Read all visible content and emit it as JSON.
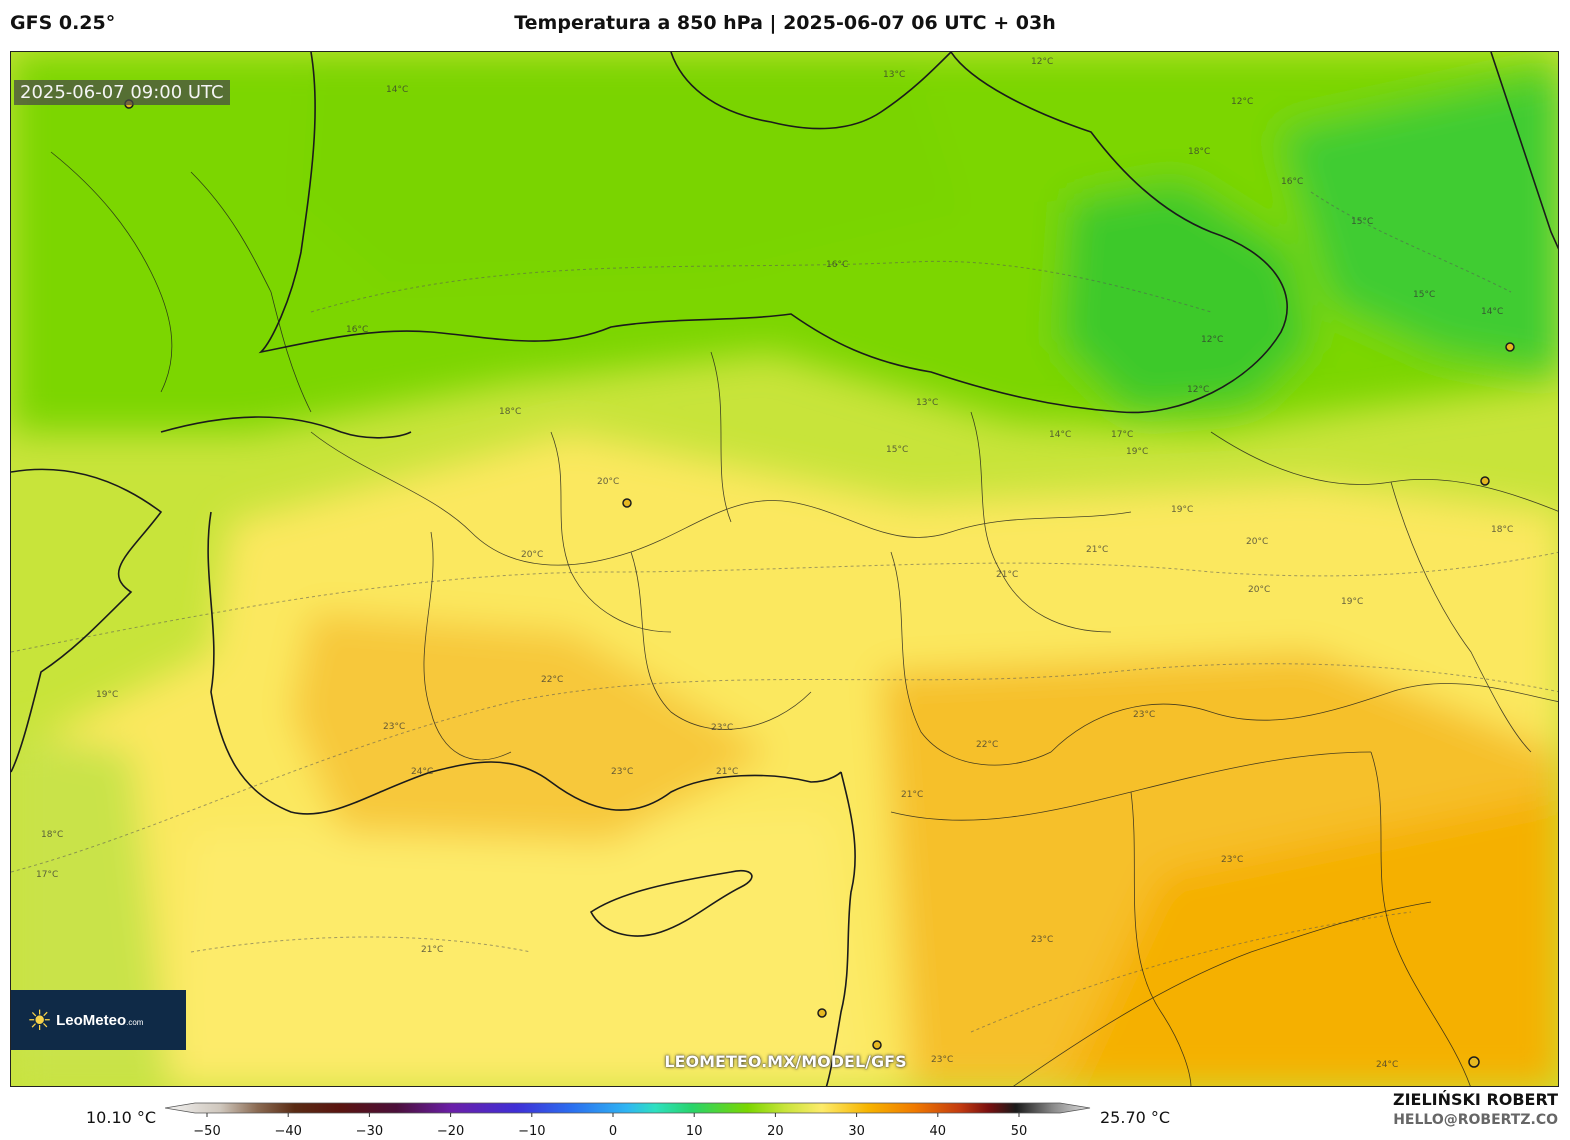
{
  "header": {
    "model": "GFS 0.25°",
    "title": "Temperatura a 850 hPa | 2025-06-07 06 UTC + 03h"
  },
  "map": {
    "valid_time": "2025-06-07 09:00 UTC",
    "watermark": "LEOMETEO.MX/MODEL/GFS",
    "logo": {
      "name": "LeoMeteo",
      "suffix": ".com",
      "icon": "sun-icon"
    },
    "contour_labels": [
      "14°C",
      "13°C",
      "12°C",
      "15°C",
      "16°C",
      "17°C",
      "18°C",
      "19°C",
      "20°C",
      "21°C",
      "22°C",
      "23°C",
      "24°C"
    ],
    "colors": {
      "cold_green": "#3ec92b",
      "green": "#7bd600",
      "yellow_green": "#c8e43a",
      "yellow": "#fdeb6a",
      "orange": "#f6b400",
      "land_border": "#1b1b1b"
    }
  },
  "colorbar": {
    "min_label": "10.10 °C",
    "max_label": "25.70 °C",
    "ticks": [
      "−50",
      "−40",
      "−30",
      "−20",
      "−10",
      "0",
      "10",
      "20",
      "30",
      "40",
      "50"
    ]
  },
  "credit": {
    "author": "ZIELIŃSKI ROBERT",
    "email": "HELLO@ROBERTZ.CO"
  }
}
